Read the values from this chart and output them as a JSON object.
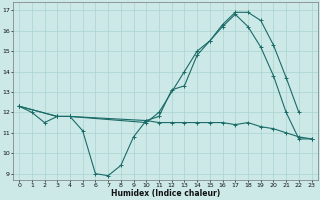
{
  "xlabel": "Humidex (Indice chaleur)",
  "bg_color": "#cce9e8",
  "grid_color": "#aad4d2",
  "line_color": "#1a6b68",
  "ylim": [
    8.7,
    17.4
  ],
  "xlim": [
    -0.5,
    23.5
  ],
  "yticks": [
    9,
    10,
    11,
    12,
    13,
    14,
    15,
    16,
    17
  ],
  "xticks": [
    0,
    1,
    2,
    3,
    4,
    5,
    6,
    7,
    8,
    9,
    10,
    11,
    12,
    13,
    14,
    15,
    16,
    17,
    18,
    19,
    20,
    21,
    22,
    23
  ],
  "line1_x": [
    0,
    1,
    2,
    3,
    4,
    5,
    6,
    7,
    8,
    9,
    10,
    11,
    12,
    13,
    14,
    15,
    16,
    17,
    18,
    19,
    20,
    21,
    22,
    23
  ],
  "line1_y": [
    12.3,
    12.0,
    11.5,
    11.8,
    11.8,
    11.1,
    9.0,
    8.9,
    9.4,
    10.8,
    11.6,
    11.5,
    11.5,
    11.5,
    11.5,
    11.5,
    11.5,
    11.4,
    11.5,
    11.3,
    11.2,
    11.0,
    10.8,
    10.7
  ],
  "line2_x": [
    0,
    3,
    4,
    10,
    11,
    12,
    13,
    14,
    15,
    16,
    17,
    18,
    19,
    20,
    21,
    22
  ],
  "line2_y": [
    12.3,
    11.8,
    11.8,
    11.6,
    11.8,
    13.1,
    13.3,
    14.8,
    15.5,
    16.3,
    16.9,
    16.9,
    16.5,
    15.3,
    13.7,
    12.0
  ],
  "line3_x": [
    0,
    3,
    4,
    10,
    11,
    13,
    14,
    15,
    16,
    17,
    18,
    19,
    20,
    21,
    22,
    23
  ],
  "line3_y": [
    12.3,
    11.8,
    11.8,
    11.5,
    12.0,
    14.0,
    15.0,
    15.5,
    16.2,
    16.8,
    16.2,
    15.2,
    13.8,
    12.0,
    10.7,
    10.7
  ]
}
